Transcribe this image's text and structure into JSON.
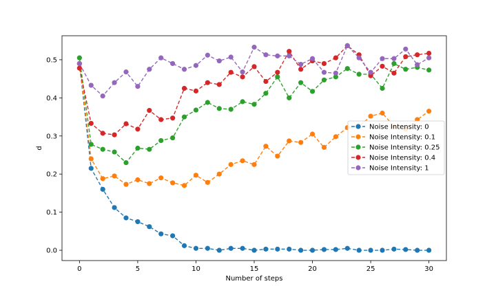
{
  "chart_data": {
    "type": "line",
    "title": "",
    "xlabel": "Number of steps",
    "ylabel": "d",
    "xlim": [
      -1.5,
      31.5
    ],
    "ylim": [
      -0.027,
      0.563
    ],
    "xticks": [
      0,
      5,
      10,
      15,
      20,
      25,
      30
    ],
    "xtick_labels": [
      "0",
      "5",
      "10",
      "15",
      "20",
      "25",
      "30"
    ],
    "yticks": [
      0.0,
      0.1,
      0.2,
      0.3,
      0.4,
      0.5
    ],
    "ytick_labels": [
      "0.0",
      "0.1",
      "0.2",
      "0.3",
      "0.4",
      "0.5"
    ],
    "grid": false,
    "legend_position": "center-right",
    "x": [
      0,
      1,
      2,
      3,
      4,
      5,
      6,
      7,
      8,
      9,
      10,
      11,
      12,
      13,
      14,
      15,
      16,
      17,
      18,
      19,
      20,
      21,
      22,
      23,
      24,
      25,
      26,
      27,
      28,
      29,
      30
    ],
    "series": [
      {
        "name": "Noise Intensity: 0",
        "color": "#1f77b4",
        "values": [
          0.49,
          0.215,
          0.16,
          0.112,
          0.085,
          0.075,
          0.062,
          0.043,
          0.038,
          0.012,
          0.005,
          0.005,
          0.0,
          0.005,
          0.005,
          0.0,
          0.003,
          0.003,
          0.003,
          0.0,
          0.0,
          0.002,
          0.002,
          0.005,
          0.0,
          0.0,
          0.0,
          0.003,
          0.002,
          0.0,
          0.0
        ]
      },
      {
        "name": "Noise Intensity: 0.1",
        "color": "#ff7f0e",
        "values": [
          0.49,
          0.24,
          0.188,
          0.195,
          0.173,
          0.185,
          0.175,
          0.19,
          0.177,
          0.17,
          0.197,
          0.178,
          0.2,
          0.225,
          0.235,
          0.225,
          0.273,
          0.247,
          0.287,
          0.283,
          0.305,
          0.27,
          0.298,
          0.322,
          0.325,
          0.352,
          0.36,
          0.325,
          0.318,
          0.343,
          0.365
        ]
      },
      {
        "name": "Noise Intensity: 0.25",
        "color": "#2ca02c",
        "values": [
          0.505,
          0.278,
          0.265,
          0.258,
          0.23,
          0.268,
          0.265,
          0.288,
          0.295,
          0.35,
          0.368,
          0.388,
          0.372,
          0.37,
          0.39,
          0.383,
          0.412,
          0.455,
          0.4,
          0.44,
          0.417,
          0.447,
          0.455,
          0.477,
          0.462,
          0.462,
          0.425,
          0.49,
          0.475,
          0.48,
          0.473
        ]
      },
      {
        "name": "Noise Intensity: 0.4",
        "color": "#d62728",
        "values": [
          0.478,
          0.333,
          0.307,
          0.303,
          0.332,
          0.318,
          0.367,
          0.343,
          0.347,
          0.425,
          0.418,
          0.44,
          0.435,
          0.467,
          0.455,
          0.482,
          0.443,
          0.467,
          0.522,
          0.475,
          0.497,
          0.49,
          0.505,
          0.537,
          0.513,
          0.458,
          0.483,
          0.465,
          0.508,
          0.513,
          0.517
        ]
      },
      {
        "name": "Noise Intensity: 1",
        "color": "#9467bd",
        "values": [
          0.49,
          0.433,
          0.405,
          0.44,
          0.468,
          0.43,
          0.475,
          0.505,
          0.49,
          0.475,
          0.485,
          0.512,
          0.497,
          0.507,
          0.468,
          0.533,
          0.513,
          0.51,
          0.51,
          0.488,
          0.503,
          0.467,
          0.465,
          0.537,
          0.505,
          0.467,
          0.503,
          0.503,
          0.528,
          0.487,
          0.505
        ]
      }
    ]
  }
}
